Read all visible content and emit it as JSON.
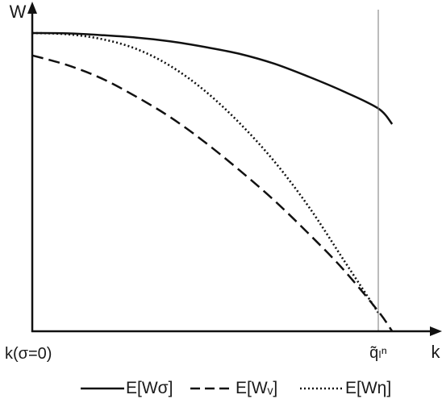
{
  "chart_data": {
    "type": "line",
    "x_axis": {
      "label": "k",
      "origin_label": "k(σ=0)",
      "marker_label": "q̃ₗⁿ",
      "range": [
        0,
        1
      ]
    },
    "y_axis": {
      "label": "W",
      "range": [
        0,
        1
      ]
    },
    "grid": false,
    "legend_placement": "bottom",
    "series": [
      {
        "name": "E[Wσ]",
        "style": "solid",
        "x": [
          0.0,
          0.1,
          0.2,
          0.3,
          0.4,
          0.5,
          0.6,
          0.7,
          0.8,
          0.9,
          1.0,
          1.04
        ],
        "y": [
          1.0,
          0.999,
          0.993,
          0.985,
          0.972,
          0.953,
          0.93,
          0.897,
          0.853,
          0.804,
          0.747,
          0.695
        ]
      },
      {
        "name": "E[Wᵥ]",
        "style": "dashed",
        "x": [
          0.0,
          0.1,
          0.2,
          0.3,
          0.4,
          0.5,
          0.6,
          0.7,
          0.8,
          0.9,
          1.0,
          1.04
        ],
        "y": [
          0.925,
          0.893,
          0.848,
          0.787,
          0.717,
          0.633,
          0.539,
          0.438,
          0.326,
          0.206,
          0.067,
          0.0
        ]
      },
      {
        "name": "E[Wη]",
        "style": "dotted",
        "x": [
          0.0,
          0.1,
          0.2,
          0.3,
          0.4,
          0.5,
          0.6,
          0.7,
          0.8,
          0.9,
          1.0
        ],
        "y": [
          1.0,
          0.996,
          0.98,
          0.947,
          0.889,
          0.805,
          0.697,
          0.569,
          0.416,
          0.239,
          0.062
        ]
      }
    ]
  }
}
